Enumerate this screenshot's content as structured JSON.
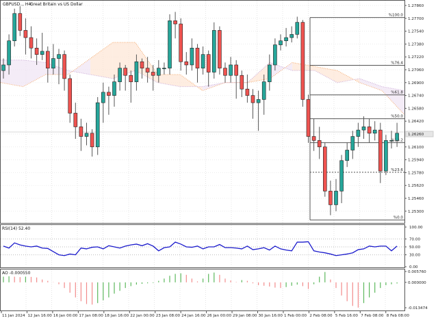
{
  "header": {
    "symbol": "GBPUSD.., H4:",
    "description": "Great Britain vs US Dollar"
  },
  "colors": {
    "bull": "#26a69a",
    "bear": "#ef5350",
    "outline": "#222222",
    "rsi": "#1a1acc",
    "ao_up": "#5cb85c",
    "ao_down": "#f28b8b",
    "cloud_a": "#f5a86b",
    "cloud_b": "#c9a8d6",
    "fib": "#555555"
  },
  "price_axis": {
    "labels": [
      "1.27860",
      "1.27700",
      "1.27540",
      "1.27380",
      "1.27220",
      "1.27060",
      "1.26900",
      "1.26740",
      "1.26580",
      "1.26420",
      "1.26100",
      "1.25940",
      "1.25780",
      "1.25620",
      "1.25460",
      "1.25300"
    ],
    "current_price": "1.26260"
  },
  "time_axis": {
    "labels": [
      "11 Jan 2024",
      "12 Jan 16:00",
      "16 Jan 00:00",
      "17 Jan 08:00",
      "18 Jan 16:00",
      "22 Jan 00:00",
      "23 Jan 08:00",
      "24 Jan 16:00",
      "26 Jan 00:00",
      "29 Jan 08:00",
      "30 Jan 16:00",
      "1 Feb 00:00",
      "2 Feb 08:00",
      "5 Feb 16:00",
      "7 Feb 08:00",
      "8 Feb 08:00"
    ]
  },
  "candles": [
    [
      1.2705,
      1.272,
      1.2695,
      1.2712
    ],
    [
      1.2712,
      1.275,
      1.27,
      1.2742
    ],
    [
      1.2742,
      1.2782,
      1.2735,
      1.2776
    ],
    [
      1.2776,
      1.2785,
      1.2748,
      1.2755
    ],
    [
      1.2755,
      1.277,
      1.2725,
      1.2746
    ],
    [
      1.2746,
      1.276,
      1.272,
      1.2733
    ],
    [
      1.2733,
      1.2745,
      1.2712,
      1.2725
    ],
    [
      1.2725,
      1.2752,
      1.2718,
      1.2729
    ],
    [
      1.2729,
      1.2735,
      1.269,
      1.2708
    ],
    [
      1.2708,
      1.2738,
      1.27,
      1.272
    ],
    [
      1.272,
      1.2732,
      1.2688,
      1.2725
    ],
    [
      1.2725,
      1.273,
      1.268,
      1.2695
    ],
    [
      1.2695,
      1.27,
      1.264,
      1.2652
    ],
    [
      1.2652,
      1.2665,
      1.262,
      1.2635
    ],
    [
      1.2635,
      1.2645,
      1.2605,
      1.2623
    ],
    [
      1.2623,
      1.264,
      1.2612,
      1.2627
    ],
    [
      1.2627,
      1.2632,
      1.2598,
      1.261
    ],
    [
      1.261,
      1.2672,
      1.26,
      1.2665
    ],
    [
      1.2665,
      1.269,
      1.264,
      1.2678
    ],
    [
      1.2678,
      1.2685,
      1.265,
      1.2674
    ],
    [
      1.2674,
      1.27,
      1.266,
      1.2691
    ],
    [
      1.2691,
      1.2715,
      1.268,
      1.2708
    ],
    [
      1.2708,
      1.2712,
      1.268,
      1.2699
    ],
    [
      1.2699,
      1.2705,
      1.2665,
      1.2691
    ],
    [
      1.2691,
      1.2725,
      1.268,
      1.2716
    ],
    [
      1.2716,
      1.272,
      1.2695,
      1.2708
    ],
    [
      1.2708,
      1.2722,
      1.269,
      1.2703
    ],
    [
      1.2703,
      1.2712,
      1.268,
      1.2699
    ],
    [
      1.2699,
      1.2718,
      1.269,
      1.2708
    ],
    [
      1.2708,
      1.2715,
      1.27,
      1.2708
    ],
    [
      1.2708,
      1.2775,
      1.27,
      1.2767
    ],
    [
      1.2767,
      1.2778,
      1.2745,
      1.2763
    ],
    [
      1.2763,
      1.277,
      1.2705,
      1.2716
    ],
    [
      1.2716,
      1.2728,
      1.27,
      1.2712
    ],
    [
      1.2712,
      1.2745,
      1.2705,
      1.2733
    ],
    [
      1.2733,
      1.2738,
      1.269,
      1.2708
    ],
    [
      1.2708,
      1.2735,
      1.27,
      1.2725
    ],
    [
      1.2725,
      1.273,
      1.2685,
      1.2703
    ],
    [
      1.2703,
      1.2765,
      1.2695,
      1.2755
    ],
    [
      1.2755,
      1.276,
      1.27,
      1.2708
    ],
    [
      1.2708,
      1.2715,
      1.269,
      1.2699
    ],
    [
      1.2699,
      1.2722,
      1.269,
      1.2712
    ],
    [
      1.2712,
      1.2718,
      1.267,
      1.2699
    ],
    [
      1.2699,
      1.2705,
      1.2672,
      1.2682
    ],
    [
      1.2682,
      1.27,
      1.2665,
      1.2674
    ],
    [
      1.2674,
      1.2682,
      1.2645,
      1.2665
    ],
    [
      1.2665,
      1.268,
      1.263,
      1.2669
    ],
    [
      1.2669,
      1.27,
      1.265,
      1.2691
    ],
    [
      1.2691,
      1.2725,
      1.268,
      1.2712
    ],
    [
      1.2712,
      1.2745,
      1.2705,
      1.2737
    ],
    [
      1.2737,
      1.275,
      1.273,
      1.2742
    ],
    [
      1.2742,
      1.2758,
      1.2735,
      1.2746
    ],
    [
      1.2746,
      1.276,
      1.274,
      1.275
    ],
    [
      1.275,
      1.2772,
      1.2745,
      1.2765
    ],
    [
      1.2765,
      1.2768,
      1.266,
      1.2669
    ],
    [
      1.2669,
      1.2675,
      1.2615,
      1.2623
    ],
    [
      1.2623,
      1.2645,
      1.2605,
      1.2618
    ],
    [
      1.2618,
      1.2635,
      1.2595,
      1.261
    ],
    [
      1.261,
      1.2615,
      1.2548,
      1.2555
    ],
    [
      1.2555,
      1.2568,
      1.2525,
      1.2538
    ],
    [
      1.2538,
      1.257,
      1.253,
      1.2555
    ],
    [
      1.2555,
      1.26,
      1.254,
      1.2593
    ],
    [
      1.2593,
      1.2615,
      1.2585,
      1.2606
    ],
    [
      1.2606,
      1.263,
      1.2595,
      1.2623
    ],
    [
      1.2623,
      1.264,
      1.261,
      1.2631
    ],
    [
      1.2631,
      1.2648,
      1.262,
      1.2635
    ],
    [
      1.2635,
      1.2645,
      1.2615,
      1.2627
    ],
    [
      1.2627,
      1.2642,
      1.2618,
      1.2631
    ],
    [
      1.2631,
      1.264,
      1.2565,
      1.258
    ],
    [
      1.258,
      1.2625,
      1.2575,
      1.2618
    ],
    [
      1.2618,
      1.263,
      1.2608,
      1.2618
    ],
    [
      1.2618,
      1.264,
      1.261,
      1.2627
    ]
  ],
  "ichimoku": {
    "span_a": [
      1.269,
      1.2685,
      1.27,
      1.27,
      1.272,
      1.274,
      1.274,
      1.27,
      1.27,
      1.268,
      1.269,
      1.269,
      1.2695,
      1.2715,
      1.271,
      1.2705,
      1.269,
      1.268,
      1.265
    ],
    "span_b": [
      1.2718,
      1.2718,
      1.2715,
      1.2705,
      1.27,
      1.2695,
      1.2705,
      1.269,
      1.2685,
      1.2685,
      1.269,
      1.269,
      1.2715,
      1.2705,
      1.2705,
      1.269,
      1.2695,
      1.2685,
      1.268
    ]
  },
  "fibonacci": {
    "high": 1.2771,
    "low": 1.2519,
    "levels": [
      {
        "pct": 100,
        "label": "%100.0"
      },
      {
        "pct": 76.4,
        "label": "%76.4"
      },
      {
        "pct": 61.8,
        "label": "%61.8"
      },
      {
        "pct": 50,
        "label": "%50.0"
      },
      {
        "pct": 38.2,
        "label": "%38.2"
      },
      {
        "pct": 23.6,
        "label": "%23.6",
        "dashed": true
      },
      {
        "pct": 0,
        "label": "%0.0"
      }
    ]
  },
  "rsi": {
    "title": "RSI(14) 52.40",
    "axis_labels": [
      "100.00",
      "70.00",
      "50.00",
      "30.00",
      "0.00"
    ],
    "levels": [
      100,
      70,
      50,
      30,
      0
    ],
    "values": [
      52,
      47,
      60,
      55,
      52,
      50,
      52,
      47,
      46,
      38,
      30,
      28,
      32,
      30,
      47,
      45,
      49,
      50,
      45,
      53,
      50,
      47,
      52,
      55,
      57,
      53,
      58,
      52,
      40,
      48,
      50,
      62,
      57,
      50,
      49,
      52,
      45,
      50,
      50,
      56,
      48,
      48,
      47,
      45,
      52,
      43,
      45,
      48,
      42,
      52,
      45,
      42,
      40,
      62,
      62,
      63,
      40,
      37,
      35,
      32,
      28,
      30,
      32,
      35,
      43,
      45,
      52,
      50,
      52,
      52,
      40,
      52
    ]
  },
  "ao": {
    "title": "AO -0.000550",
    "axis_labels": [
      "0.005760",
      "0.000000",
      "-0.013474"
    ],
    "max": 0.00576,
    "min": -0.013474,
    "values": [
      0.003,
      0.0032,
      0.003,
      0.0028,
      0.003,
      0.0029,
      0.0026,
      0.0015,
      0.0008,
      0.0001,
      -0.001,
      -0.003,
      -0.0055,
      -0.008,
      -0.01,
      -0.0115,
      -0.0118,
      -0.011,
      -0.0095,
      -0.008,
      -0.006,
      -0.0045,
      -0.003,
      -0.002,
      -0.0012,
      -0.0008,
      -0.0005,
      -0.0003,
      0.0008,
      0.002,
      0.0035,
      0.0045,
      0.0048,
      0.004,
      0.002,
      0.0005,
      0.002,
      0.0045,
      0.0052,
      0.004,
      0.002,
      0.001,
      0.0002,
      0.0012,
      0.0008,
      -0.0005,
      -0.0015,
      -0.0018,
      -0.0022,
      -0.0028,
      -0.003,
      -0.0025,
      -0.0018,
      -0.0012,
      -0.002,
      -0.0035,
      -0.001,
      0.003,
      0.0055,
      0.0015,
      -0.003,
      -0.007,
      -0.01,
      -0.0125,
      -0.0134,
      -0.011,
      -0.008,
      -0.0055,
      -0.003,
      -0.0015,
      -0.001,
      -0.0006
    ]
  }
}
